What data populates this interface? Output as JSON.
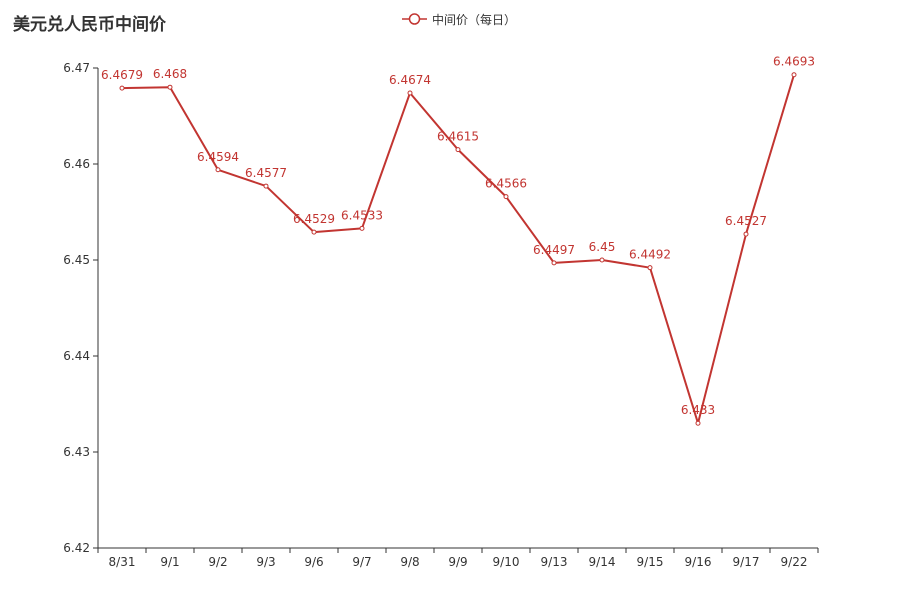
{
  "title": "美元兑人民币中间价",
  "legend": {
    "label": "中间价（每日）"
  },
  "colors": {
    "series": "#c23531",
    "axis": "#333333",
    "text": "#333333"
  },
  "chart_data": {
    "type": "line",
    "title": "美元兑人民币中间价",
    "xlabel": "",
    "ylabel": "",
    "categories": [
      "8/31",
      "9/1",
      "9/2",
      "9/3",
      "9/6",
      "9/7",
      "9/8",
      "9/9",
      "9/10",
      "9/13",
      "9/14",
      "9/15",
      "9/16",
      "9/17",
      "9/22"
    ],
    "series": [
      {
        "name": "中间价（每日）",
        "values": [
          6.4679,
          6.468,
          6.4594,
          6.4577,
          6.4529,
          6.4533,
          6.4674,
          6.4615,
          6.4566,
          6.4497,
          6.45,
          6.4492,
          6.433,
          6.4527,
          6.4693
        ],
        "labels": [
          "6.4679",
          "6.468",
          "6.4594",
          "6.4577",
          "6.4529",
          "6.4533",
          "6.4674",
          "6.4615",
          "6.4566",
          "6.4497",
          "6.45",
          "6.4492",
          "6.433",
          "6.4527",
          "6.4693"
        ]
      }
    ],
    "ylim": [
      6.42,
      6.47
    ],
    "yticks": [
      "6.42",
      "6.43",
      "6.44",
      "6.45",
      "6.46",
      "6.47"
    ],
    "grid": false,
    "legend_position": "top-center"
  }
}
